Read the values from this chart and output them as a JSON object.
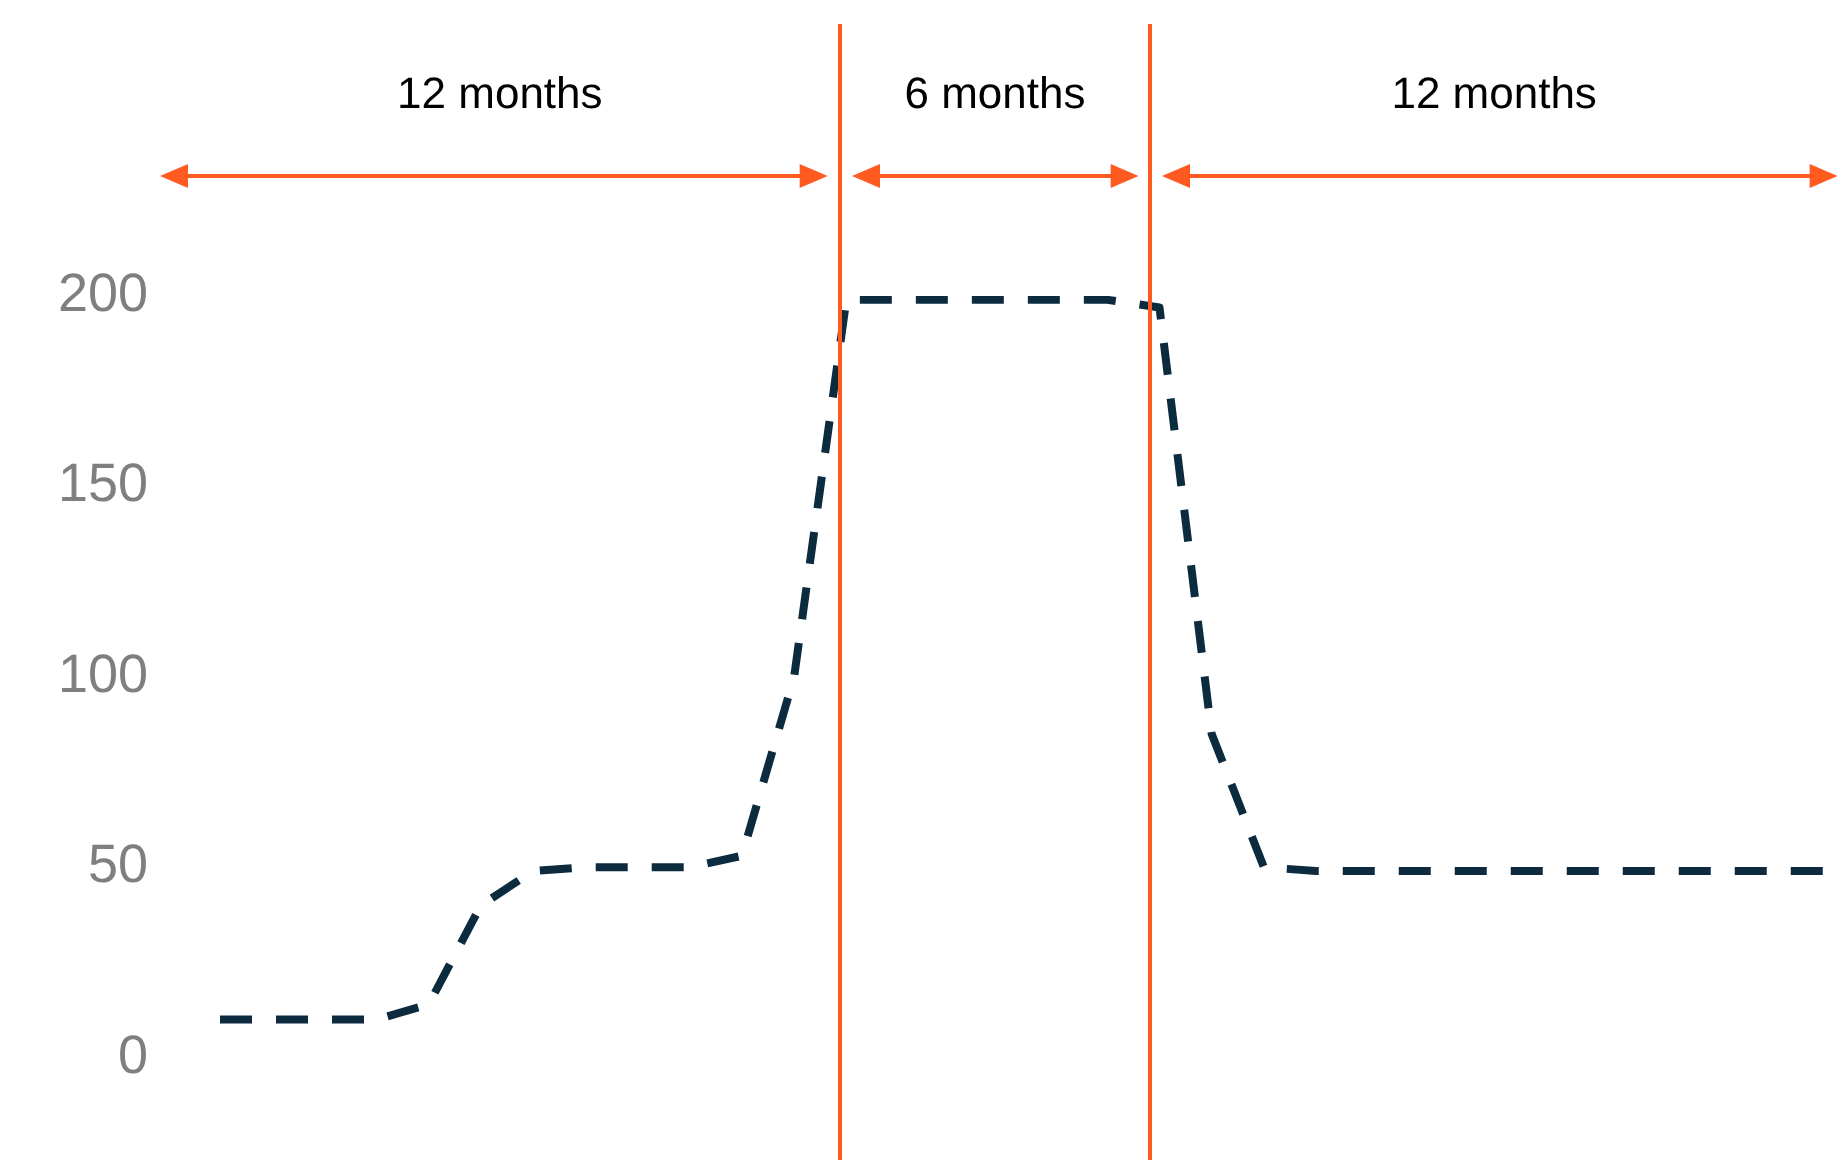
{
  "chart_data": {
    "type": "line",
    "categories": [
      null,
      null,
      null,
      null,
      null,
      null,
      null,
      null,
      null,
      null,
      null,
      null,
      null,
      null,
      null,
      null,
      null,
      null,
      null,
      null,
      null,
      null,
      null,
      null,
      null,
      null,
      null,
      null,
      null,
      null,
      null,
      null
    ],
    "series": [
      {
        "color": "#0d2b3e",
        "values": [
          10,
          10,
          10,
          10,
          14,
          40,
          49,
          50,
          50,
          50,
          53,
          100,
          199,
          199,
          199,
          199,
          199,
          199,
          197,
          85,
          50,
          49,
          49,
          49,
          49,
          49,
          49,
          49,
          49,
          49,
          49,
          49
        ]
      }
    ],
    "ylim": [
      0,
      200
    ],
    "yticks": [
      0,
      50,
      100,
      150,
      200
    ],
    "tick_labels": "y",
    "grid": false,
    "legend": false,
    "marker": "none",
    "line_style": "dashed",
    "annotations": [
      "12 months",
      "6 months",
      "12 months"
    ]
  }
}
